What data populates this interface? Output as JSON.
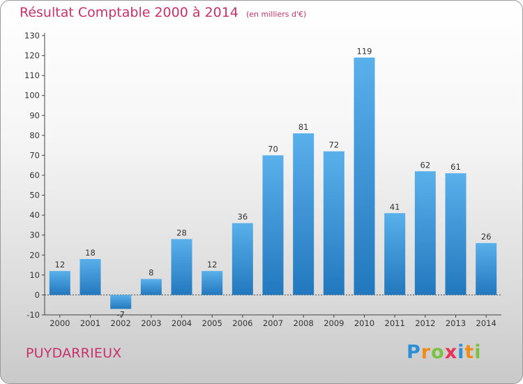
{
  "title": "Résultat Comptable 2000 à 2014",
  "subtitle": "(en milliers d'€)",
  "commune": "PUYDARRIEUX",
  "logo": {
    "letters": [
      "P",
      "r",
      "o",
      "x",
      "i",
      "t",
      "i"
    ],
    "colors": [
      "#2f8fd6",
      "#f08c1a",
      "#7cc242",
      "#e8325a",
      "#2f8fd6",
      "#f08c1a",
      "#7cc242"
    ]
  },
  "colors": {
    "bar_light": "#5ab0ea",
    "bar_dark": "#2278bd",
    "title": "#c8316a"
  },
  "chart_data": {
    "type": "bar",
    "categories": [
      "2000",
      "2001",
      "2002",
      "2003",
      "2004",
      "2005",
      "2006",
      "2007",
      "2008",
      "2009",
      "2010",
      "2011",
      "2012",
      "2013",
      "2014"
    ],
    "values": [
      12,
      18,
      -7,
      8,
      28,
      12,
      36,
      70,
      81,
      72,
      119,
      41,
      62,
      61,
      26
    ],
    "title": "Résultat Comptable 2000 à 2014",
    "subtitle": "(en milliers d'€)",
    "ylim": [
      -10,
      130
    ],
    "yticks": [
      -10,
      0,
      10,
      20,
      30,
      40,
      50,
      60,
      70,
      80,
      90,
      100,
      110,
      120,
      130
    ],
    "grid": false
  }
}
